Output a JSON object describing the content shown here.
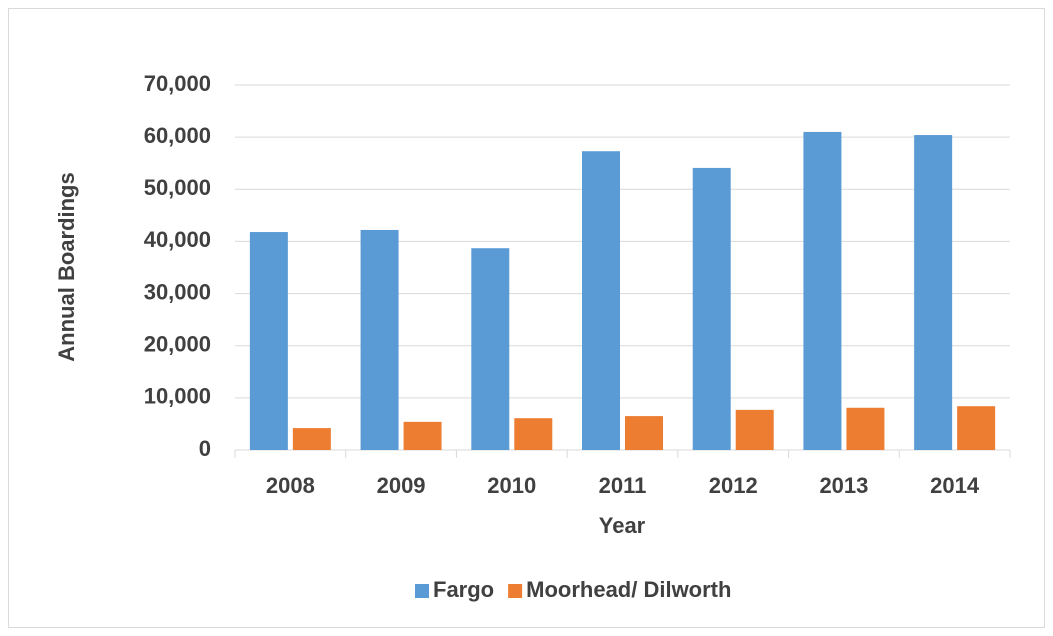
{
  "chart_data": {
    "type": "bar",
    "x_label": "Year",
    "y_label": "Annual Boardings",
    "categories": [
      "2008",
      "2009",
      "2010",
      "2011",
      "2012",
      "2013",
      "2014"
    ],
    "series": [
      {
        "name": "Fargo",
        "color": "#5b9bd5",
        "values": [
          41800,
          42200,
          38700,
          57300,
          54100,
          61000,
          60400
        ]
      },
      {
        "name": "Moorhead/ Dilworth",
        "color": "#ed7d31",
        "values": [
          4200,
          5400,
          6100,
          6500,
          7700,
          8100,
          8400
        ]
      }
    ],
    "ylim": [
      0,
      70000
    ],
    "yticks": [
      0,
      {
        "value": 10000,
        "label": "10,000"
      },
      {
        "value": 20000,
        "label": "20,000"
      },
      {
        "value": 30000,
        "label": "30,000"
      },
      {
        "value": 40000,
        "label": "40,000"
      },
      {
        "value": 50000,
        "label": "50,000"
      },
      {
        "value": 60000,
        "label": "60,000"
      },
      {
        "value": 70000,
        "label": "70,000"
      }
    ],
    "grid": true,
    "legend": "bottom"
  }
}
